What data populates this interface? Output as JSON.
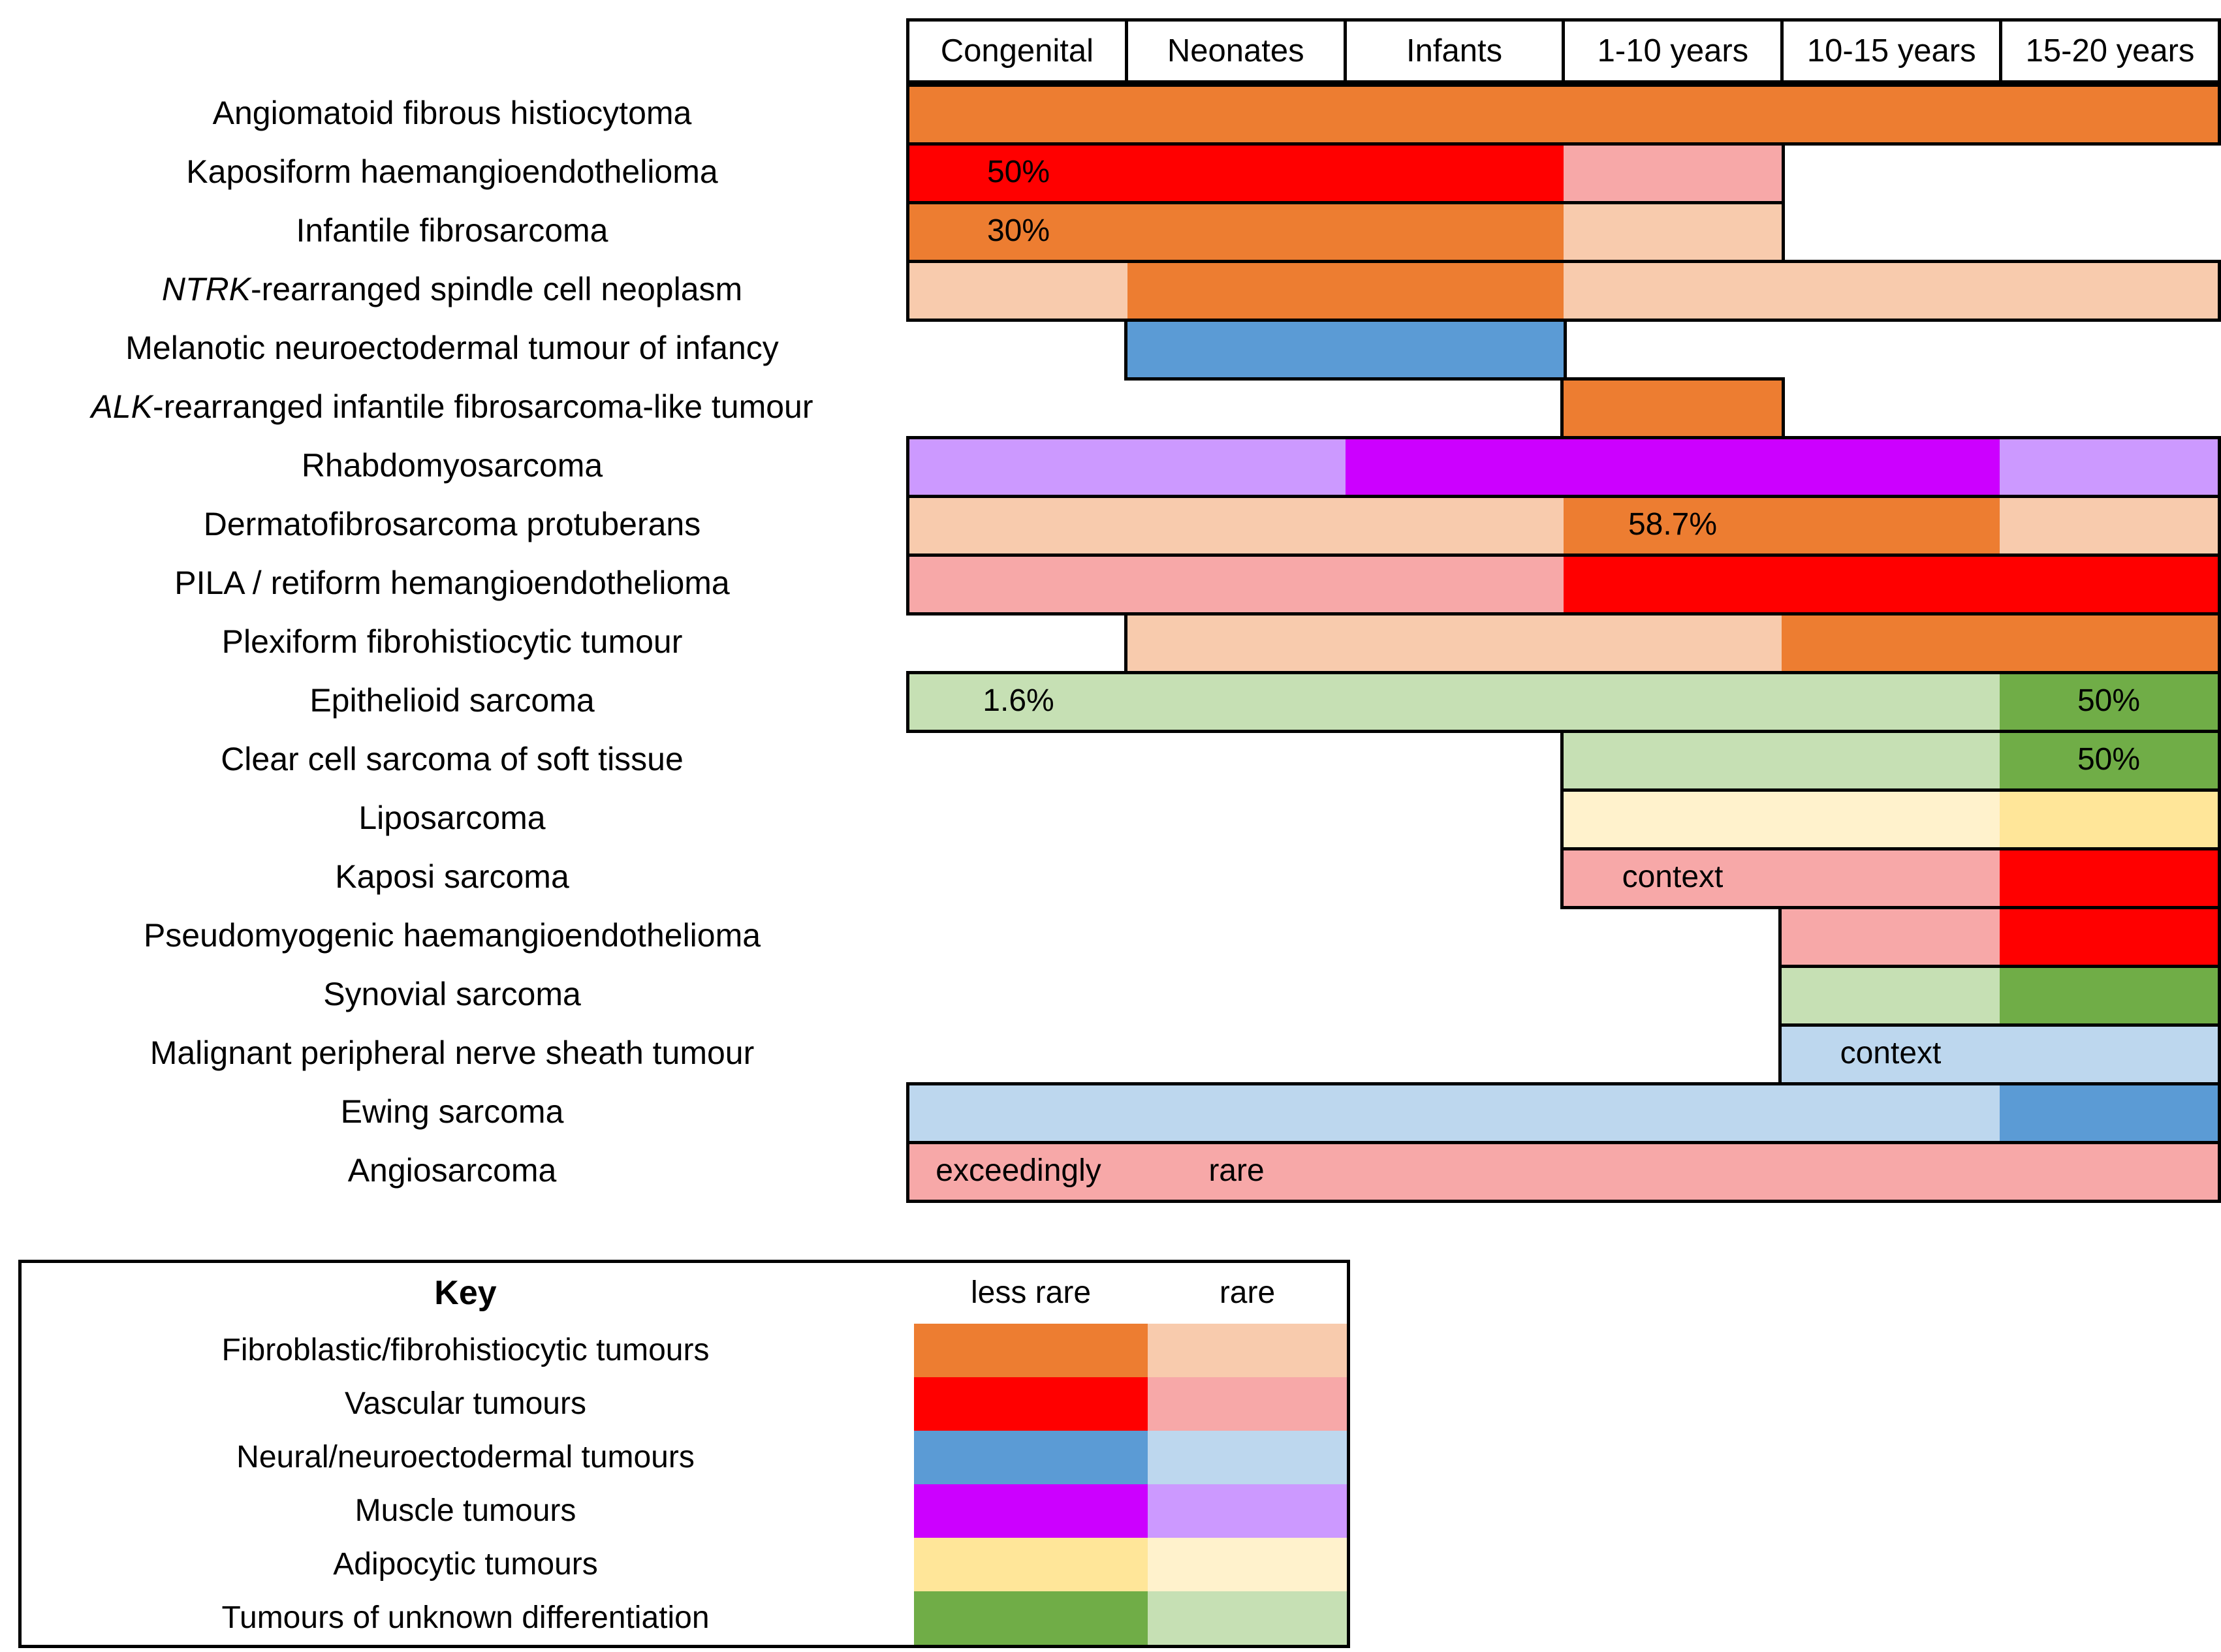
{
  "chart_data": {
    "type": "heatmap",
    "description": "Age distribution of rare paediatric soft-tissue tumour types across age bands, shaded by tumour family and rarity",
    "columns": [
      "Congenital",
      "Neonates",
      "Infants",
      "1-10 years",
      "10-15 years",
      "15-20 years"
    ],
    "legend_position": "bottom-left",
    "grid": false,
    "key": {
      "title": "Key",
      "shade_headers": [
        "less rare",
        "rare"
      ],
      "categories": [
        {
          "id": "fibroblastic",
          "label": "Fibroblastic/fibrohistiocytic tumours",
          "less_rare": "#ED7D31",
          "rare": "#F8CBAD"
        },
        {
          "id": "vascular",
          "label": "Vascular tumours",
          "less_rare": "#FF0000",
          "rare": "#F7A8A8"
        },
        {
          "id": "neural",
          "label": "Neural/neuroectodermal tumours",
          "less_rare": "#5B9BD5",
          "rare": "#BDD7EE"
        },
        {
          "id": "muscle",
          "label": "Muscle tumours",
          "less_rare": "#CC00FF",
          "rare": "#CC99FF"
        },
        {
          "id": "adipocytic",
          "label": "Adipocytic tumours",
          "less_rare": "#FFE699",
          "rare": "#FFF2CC"
        },
        {
          "id": "unknown",
          "label": "Tumours of unknown differentiation",
          "less_rare": "#70AD47",
          "rare": "#C6E0B4"
        }
      ]
    },
    "rows": [
      {
        "label": "Angiomatoid fibrous histiocytoma",
        "category": "fibroblastic",
        "segments": [
          {
            "from": 0,
            "to": 6,
            "shade": "less_rare"
          }
        ],
        "annotations": []
      },
      {
        "label": "Kaposiform haemangioendothelioma",
        "category": "vascular",
        "segments": [
          {
            "from": 0,
            "to": 3,
            "shade": "less_rare"
          },
          {
            "from": 3,
            "to": 4,
            "shade": "rare"
          }
        ],
        "annotations": [
          {
            "text": "50%",
            "col": 0
          }
        ]
      },
      {
        "label": "Infantile fibrosarcoma",
        "category": "fibroblastic",
        "segments": [
          {
            "from": 0,
            "to": 3,
            "shade": "less_rare"
          },
          {
            "from": 3,
            "to": 4,
            "shade": "rare"
          }
        ],
        "annotations": [
          {
            "text": "30%",
            "col": 0
          }
        ]
      },
      {
        "label": "NTRK-rearranged spindle cell neoplasm",
        "italic_prefix": "NTRK",
        "category": "fibroblastic",
        "segments": [
          {
            "from": 0,
            "to": 1,
            "shade": "rare"
          },
          {
            "from": 1,
            "to": 3,
            "shade": "less_rare"
          },
          {
            "from": 3,
            "to": 6,
            "shade": "rare"
          }
        ],
        "annotations": []
      },
      {
        "label": "Melanotic neuroectodermal tumour of infancy",
        "category": "neural",
        "segments": [
          {
            "from": 1,
            "to": 3,
            "shade": "less_rare"
          }
        ],
        "annotations": []
      },
      {
        "label": "ALK-rearranged infantile fibrosarcoma-like tumour",
        "italic_prefix": "ALK",
        "category": "fibroblastic",
        "segments": [
          {
            "from": 3,
            "to": 4,
            "shade": "less_rare"
          }
        ],
        "annotations": []
      },
      {
        "label": "Rhabdomyosarcoma",
        "category": "muscle",
        "segments": [
          {
            "from": 0,
            "to": 2,
            "shade": "rare"
          },
          {
            "from": 2,
            "to": 5,
            "shade": "less_rare"
          },
          {
            "from": 5,
            "to": 6,
            "shade": "rare"
          }
        ],
        "annotations": []
      },
      {
        "label": "Dermatofibrosarcoma protuberans",
        "category": "fibroblastic",
        "segments": [
          {
            "from": 0,
            "to": 3,
            "shade": "rare"
          },
          {
            "from": 3,
            "to": 5,
            "shade": "less_rare"
          },
          {
            "from": 5,
            "to": 6,
            "shade": "rare"
          }
        ],
        "annotations": [
          {
            "text": "58.7%",
            "col": 3
          }
        ]
      },
      {
        "label": "PILA / retiform hemangioendothelioma",
        "category": "vascular",
        "segments": [
          {
            "from": 0,
            "to": 3,
            "shade": "rare"
          },
          {
            "from": 3,
            "to": 6,
            "shade": "less_rare"
          }
        ],
        "annotations": []
      },
      {
        "label": "Plexiform fibrohistiocytic tumour",
        "category": "fibroblastic",
        "segments": [
          {
            "from": 1,
            "to": 4,
            "shade": "rare"
          },
          {
            "from": 4,
            "to": 6,
            "shade": "less_rare"
          }
        ],
        "annotations": []
      },
      {
        "label": "Epithelioid sarcoma",
        "category": "unknown",
        "segments": [
          {
            "from": 0,
            "to": 5,
            "shade": "rare"
          },
          {
            "from": 5,
            "to": 6,
            "shade": "less_rare"
          }
        ],
        "annotations": [
          {
            "text": "1.6%",
            "col": 0
          },
          {
            "text": "50%",
            "col": 5
          }
        ]
      },
      {
        "label": "Clear cell sarcoma of soft tissue",
        "category": "unknown",
        "segments": [
          {
            "from": 3,
            "to": 5,
            "shade": "rare"
          },
          {
            "from": 5,
            "to": 6,
            "shade": "less_rare"
          }
        ],
        "annotations": [
          {
            "text": "50%",
            "col": 5
          }
        ]
      },
      {
        "label": "Liposarcoma",
        "category": "adipocytic",
        "segments": [
          {
            "from": 3,
            "to": 5,
            "shade": "rare"
          },
          {
            "from": 5,
            "to": 6,
            "shade": "less_rare"
          }
        ],
        "annotations": []
      },
      {
        "label": "Kaposi sarcoma",
        "category": "vascular",
        "segments": [
          {
            "from": 3,
            "to": 5,
            "shade": "rare"
          },
          {
            "from": 5,
            "to": 6,
            "shade": "less_rare"
          }
        ],
        "annotations": [
          {
            "text": "context",
            "col": 3
          }
        ]
      },
      {
        "label": "Pseudomyogenic haemangioendothelioma",
        "category": "vascular",
        "segments": [
          {
            "from": 4,
            "to": 5,
            "shade": "rare"
          },
          {
            "from": 5,
            "to": 6,
            "shade": "less_rare"
          }
        ],
        "annotations": []
      },
      {
        "label": "Synovial sarcoma",
        "category": "unknown",
        "segments": [
          {
            "from": 4,
            "to": 5,
            "shade": "rare"
          },
          {
            "from": 5,
            "to": 6,
            "shade": "less_rare"
          }
        ],
        "annotations": []
      },
      {
        "label": "Malignant peripheral nerve sheath tumour",
        "category": "neural",
        "segments": [
          {
            "from": 4,
            "to": 6,
            "shade": "rare"
          }
        ],
        "annotations": [
          {
            "text": "context",
            "col": 4
          }
        ]
      },
      {
        "label": "Ewing sarcoma",
        "category": "neural",
        "segments": [
          {
            "from": 0,
            "to": 5,
            "shade": "rare"
          },
          {
            "from": 5,
            "to": 6,
            "shade": "less_rare"
          }
        ],
        "annotations": []
      },
      {
        "label": "Angiosarcoma",
        "category": "vascular",
        "segments": [
          {
            "from": 0,
            "to": 6,
            "shade": "rare"
          }
        ],
        "annotations": [
          {
            "text": "exceedingly",
            "col": 0
          },
          {
            "text": "rare",
            "col": 1
          }
        ]
      }
    ]
  }
}
